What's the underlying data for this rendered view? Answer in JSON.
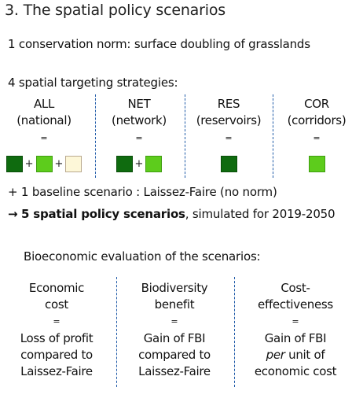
{
  "title": "3. The spatial policy scenarios",
  "conservation_norm": "1 conservation norm: surface doubling of grasslands",
  "strategies_heading": "4 spatial targeting strategies:",
  "equals_mark": "=",
  "strategies": [
    {
      "code": "ALL",
      "desc": "(national)",
      "swatches": [
        "dark",
        "light",
        "pale"
      ]
    },
    {
      "code": "NET",
      "desc": "(network)",
      "swatches": [
        "dark",
        "light"
      ]
    },
    {
      "code": "RES",
      "desc": "(reservoirs)",
      "swatches": [
        "dark"
      ]
    },
    {
      "code": "COR",
      "desc": "(corridors)",
      "swatches": [
        "light"
      ]
    }
  ],
  "swatch_colors": {
    "dark": "#0f6b0f",
    "light": "#5dcc1c",
    "pale": "#fdf7d8"
  },
  "plus_sign": "+",
  "baseline_line": "+ 1 baseline scenario : Laissez-Faire (no norm)",
  "policy_line": {
    "arrow": "→",
    "bold_text": "5 spatial policy scenarios",
    "rest_text": ", simulated for 2019-2050"
  },
  "evaluation_heading": "Bioeconomic evaluation of the scenarios:",
  "evaluation": [
    {
      "label_line1": "Economic",
      "label_line2": "cost",
      "result_line1": "Loss of profit",
      "result_line2": "compared to",
      "result_line3": "Laissez-Faire"
    },
    {
      "label_line1": "Biodiversity",
      "label_line2": "benefit",
      "result_line1": "Gain of FBI",
      "result_line2": "compared to",
      "result_line3": "Laissez-Faire"
    },
    {
      "label_line1": "Cost-",
      "label_line2": "effectiveness",
      "result_line1": "Gain of FBI",
      "result_line2_italic": "per",
      "result_line2_rest": " unit of",
      "result_line3": "economic cost"
    }
  ],
  "divider_color": "#1f5aa8"
}
